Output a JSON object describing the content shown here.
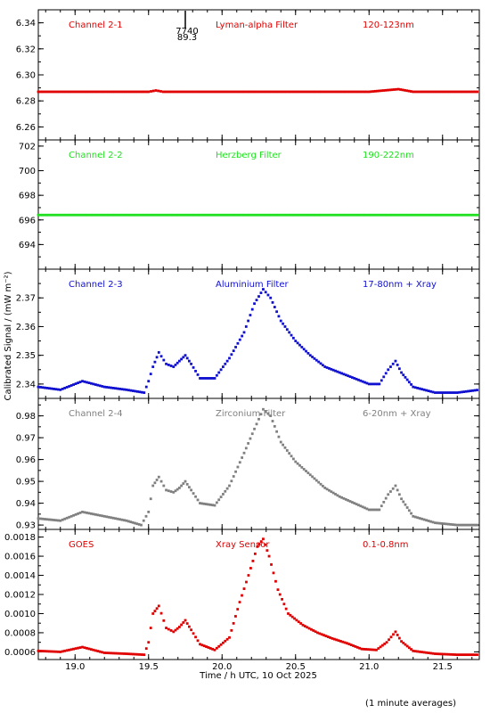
{
  "chart_data": {
    "type": "scatter",
    "xlabel": "Time / h UTC, 10 Oct 2025",
    "ylabel": "Calibrated Signal / (mW m⁻²)",
    "footnote": "(1 minute averages)",
    "xlim": [
      18.75,
      21.75
    ],
    "xticks": [
      19.0,
      19.5,
      20.0,
      20.5,
      21.0,
      21.5
    ],
    "xtick_labels": [
      "19.0",
      "19.5",
      "20.0",
      "20.5",
      "21.0",
      "21.5"
    ],
    "marker_annotation": {
      "x": 19.75,
      "labels": [
        "7740",
        "89.3"
      ]
    },
    "panels": [
      {
        "channel": "Channel 2-1",
        "filter": "Lyman-alpha Filter",
        "band": "120-123nm",
        "color": "#e00000",
        "ylim": [
          6.25,
          6.35
        ],
        "yticks": [
          6.26,
          6.28,
          6.3,
          6.32,
          6.34
        ],
        "ytick_labels": [
          "6.26",
          "6.28",
          "6.30",
          "6.32",
          "6.34"
        ],
        "x": [
          18.75,
          19.5,
          19.55,
          19.6,
          20.0,
          20.5,
          21.0,
          21.1,
          21.2,
          21.3,
          21.75
        ],
        "y": [
          6.287,
          6.287,
          6.288,
          6.287,
          6.287,
          6.287,
          6.287,
          6.288,
          6.289,
          6.287,
          6.287
        ]
      },
      {
        "channel": "Channel 2-2",
        "filter": "Herzberg Filter",
        "band": "190-222nm",
        "color": "#20e020",
        "ylim": [
          692.0,
          702.5
        ],
        "yticks": [
          694,
          696,
          698,
          700,
          702
        ],
        "ytick_labels": [
          "694",
          "696",
          "698",
          "700",
          "702"
        ],
        "x": [
          18.75,
          19.5,
          20.0,
          20.5,
          21.0,
          21.5,
          21.75
        ],
        "y": [
          696.4,
          696.4,
          696.4,
          696.4,
          696.4,
          696.4,
          696.4
        ]
      },
      {
        "channel": "Channel 2-3",
        "filter": "Aluminium Filter",
        "band": "17-80nm + Xray",
        "color": "#1010d0",
        "ylim": [
          2.335,
          2.38
        ],
        "yticks": [
          2.34,
          2.35,
          2.36,
          2.37
        ],
        "ytick_labels": [
          "2.34",
          "2.35",
          "2.36",
          "2.37"
        ],
        "x": [
          18.75,
          18.9,
          19.05,
          19.2,
          19.35,
          19.47,
          19.5,
          19.53,
          19.57,
          19.62,
          19.67,
          19.71,
          19.75,
          19.79,
          19.85,
          19.95,
          20.05,
          20.15,
          20.22,
          20.28,
          20.33,
          20.4,
          20.5,
          20.6,
          20.7,
          20.8,
          20.9,
          21.0,
          21.07,
          21.13,
          21.18,
          21.22,
          21.3,
          21.45,
          21.6,
          21.75
        ],
        "y": [
          2.339,
          2.338,
          2.341,
          2.339,
          2.338,
          2.337,
          2.341,
          2.346,
          2.351,
          2.347,
          2.346,
          2.348,
          2.35,
          2.347,
          2.342,
          2.342,
          2.349,
          2.358,
          2.368,
          2.373,
          2.37,
          2.362,
          2.355,
          2.35,
          2.346,
          2.344,
          2.342,
          2.34,
          2.34,
          2.345,
          2.348,
          2.344,
          2.339,
          2.337,
          2.337,
          2.338
        ]
      },
      {
        "channel": "Channel 2-4",
        "filter": "Zirconium Filter",
        "band": "6-20nm + Xray",
        "color": "#808080",
        "ylim": [
          0.928,
          0.988
        ],
        "yticks": [
          0.93,
          0.94,
          0.95,
          0.96,
          0.97,
          0.98
        ],
        "ytick_labels": [
          "0.93",
          "0.94",
          "0.95",
          "0.96",
          "0.97",
          "0.98"
        ],
        "x": [
          18.75,
          18.9,
          19.05,
          19.2,
          19.35,
          19.45,
          19.5,
          19.53,
          19.57,
          19.62,
          19.67,
          19.71,
          19.75,
          19.79,
          19.85,
          19.95,
          20.05,
          20.15,
          20.22,
          20.28,
          20.33,
          20.4,
          20.5,
          20.6,
          20.7,
          20.8,
          20.9,
          21.0,
          21.07,
          21.13,
          21.18,
          21.22,
          21.3,
          21.45,
          21.6,
          21.75
        ],
        "y": [
          0.933,
          0.932,
          0.936,
          0.934,
          0.932,
          0.93,
          0.936,
          0.948,
          0.952,
          0.946,
          0.945,
          0.947,
          0.95,
          0.946,
          0.94,
          0.939,
          0.948,
          0.963,
          0.974,
          0.983,
          0.98,
          0.968,
          0.959,
          0.953,
          0.947,
          0.943,
          0.94,
          0.937,
          0.937,
          0.944,
          0.948,
          0.942,
          0.934,
          0.931,
          0.93,
          0.93
        ]
      },
      {
        "channel": "GOES",
        "filter": "Xray Sensor",
        "band": "0.1-0.8nm",
        "color": "#e00000",
        "ylim": [
          0.00052,
          0.00188
        ],
        "yticks": [
          0.0006,
          0.0008,
          0.001,
          0.0012,
          0.0014,
          0.0016,
          0.0018
        ],
        "ytick_labels": [
          "0.0006",
          "0.0008",
          "0.0010",
          "0.0012",
          "0.0014",
          "0.0016",
          "0.0018"
        ],
        "x": [
          18.75,
          18.9,
          19.05,
          19.2,
          19.35,
          19.47,
          19.5,
          19.53,
          19.57,
          19.62,
          19.67,
          19.71,
          19.75,
          19.79,
          19.85,
          19.95,
          20.05,
          20.12,
          20.18,
          20.24,
          20.28,
          20.32,
          20.38,
          20.45,
          20.55,
          20.65,
          20.75,
          20.85,
          20.95,
          21.05,
          21.12,
          21.18,
          21.22,
          21.3,
          21.45,
          21.6,
          21.75
        ],
        "y": [
          0.00061,
          0.0006,
          0.00065,
          0.00059,
          0.00058,
          0.00057,
          0.0007,
          0.001,
          0.00108,
          0.00085,
          0.00081,
          0.00086,
          0.00093,
          0.00083,
          0.00068,
          0.00062,
          0.00075,
          0.00112,
          0.0014,
          0.0017,
          0.00178,
          0.0016,
          0.00125,
          0.001,
          0.00088,
          0.0008,
          0.00074,
          0.00069,
          0.00063,
          0.00062,
          0.0007,
          0.00081,
          0.00071,
          0.00061,
          0.00058,
          0.00057,
          0.00057
        ]
      }
    ]
  }
}
